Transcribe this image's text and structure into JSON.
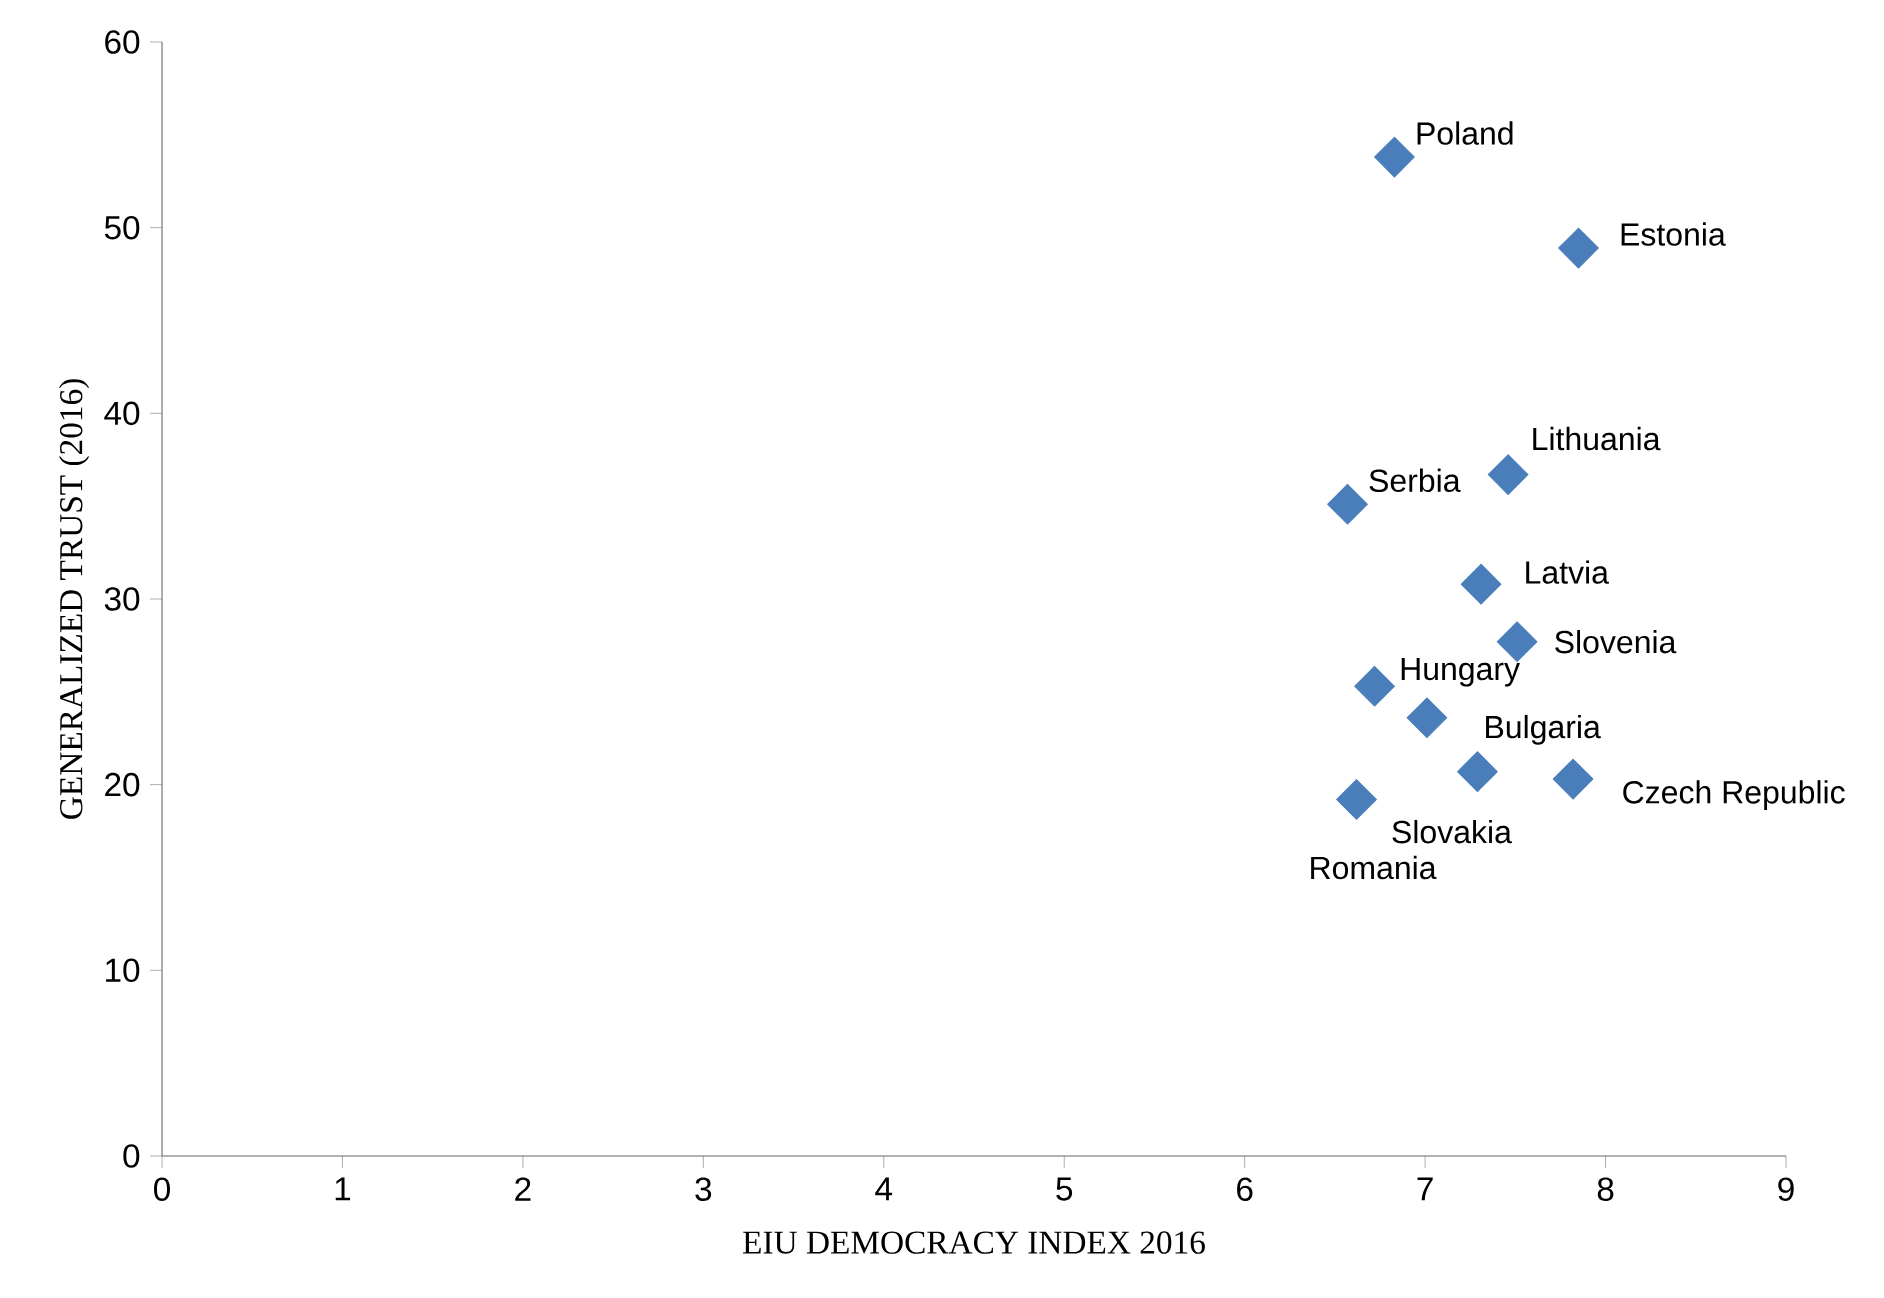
{
  "chart_data": {
    "type": "scatter",
    "xlabel": "EIU DEMOCRACY INDEX 2016",
    "ylabel": "GENERALIZED TRUST (2016)",
    "x": [
      6.83,
      7.85,
      7.46,
      6.57,
      7.31,
      7.51,
      6.72,
      7.01,
      7.29,
      7.82,
      6.62
    ],
    "values": [
      53.8,
      48.9,
      36.7,
      35.1,
      30.8,
      27.7,
      25.3,
      23.6,
      20.7,
      20.3,
      19.2
    ],
    "color": "#4a7ebb",
    "marker": "diamond",
    "xlim": [
      0,
      9
    ],
    "ylim": [
      0,
      60
    ],
    "xticks": [
      0,
      1,
      2,
      3,
      4,
      5,
      6,
      7,
      8,
      9
    ],
    "yticks": [
      0,
      10,
      20,
      30,
      40,
      50,
      60
    ],
    "annotations": [
      "Poland",
      "Estonia",
      "Lithuania",
      "Serbia",
      "Latvia",
      "Slovenia",
      "Hungary",
      "Bulgaria",
      "Slovakia",
      "Czech Republic",
      "Romania"
    ]
  }
}
